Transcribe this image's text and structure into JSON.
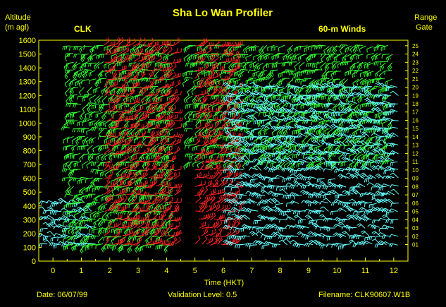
{
  "chart_data": {
    "type": "wind-barb-time-height",
    "title": "Sha Lo Wan Profiler",
    "station": "CLK",
    "product": "60-m Winds",
    "ylabel_line1": "Altitude",
    "ylabel_line2": "(m agl)",
    "xlabel": "Time (HKT)",
    "right_label_line1": "Range",
    "right_label_line2": "Gate",
    "xlim": [
      -0.5,
      12.5
    ],
    "ylim": [
      0,
      1600
    ],
    "x_ticks": [
      0,
      1,
      2,
      3,
      4,
      5,
      6,
      7,
      8,
      9,
      10,
      11,
      12
    ],
    "y_ticks": [
      0,
      100,
      200,
      300,
      400,
      500,
      600,
      700,
      800,
      900,
      1000,
      1100,
      1200,
      1300,
      1400,
      1500,
      1600
    ],
    "range_gates": [
      "01",
      "02",
      "03",
      "04",
      "05",
      "06",
      "07",
      "08",
      "09",
      "10",
      "11",
      "12",
      "13",
      "14",
      "15",
      "16",
      "17",
      "18",
      "19",
      "20",
      "21",
      "22",
      "23",
      "24",
      "25"
    ],
    "range_gate_altitudes": [
      120,
      180,
      240,
      300,
      360,
      420,
      480,
      540,
      600,
      660,
      720,
      780,
      840,
      900,
      960,
      1020,
      1080,
      1140,
      1200,
      1260,
      1320,
      1380,
      1440,
      1500,
      1560
    ],
    "legend": "none",
    "grid": false,
    "colors": {
      "background": "#000000",
      "text": "#ffff00",
      "cyan_barbs": "#66ffff",
      "green_barbs": "#33ff33",
      "red_barbs": "#ff2222"
    },
    "barb_regions": [
      {
        "color": "cyan",
        "time_range": [
          -0.2,
          1.6
        ],
        "altitude_range": [
          100,
          420
        ]
      },
      {
        "color": "green",
        "time_range": [
          0.6,
          4.3
        ],
        "altitude_range": [
          100,
          1560
        ]
      },
      {
        "color": "red",
        "time_range": [
          1.8,
          4.3
        ],
        "altitude_range": [
          120,
          1560
        ]
      },
      {
        "color": "green",
        "time_range": [
          4.8,
          12.0
        ],
        "altitude_range": [
          700,
          1560
        ]
      },
      {
        "color": "red",
        "time_range": [
          5.0,
          6.5
        ],
        "altitude_range": [
          100,
          1560
        ]
      },
      {
        "color": "cyan",
        "time_range": [
          6.3,
          12.2
        ],
        "altitude_range": [
          100,
          1300
        ]
      }
    ]
  },
  "footer": {
    "date": "Date:  06/07/99",
    "validation": "Validation Level:  0.5",
    "filename": "Filename:  CLK90607.W1B"
  }
}
